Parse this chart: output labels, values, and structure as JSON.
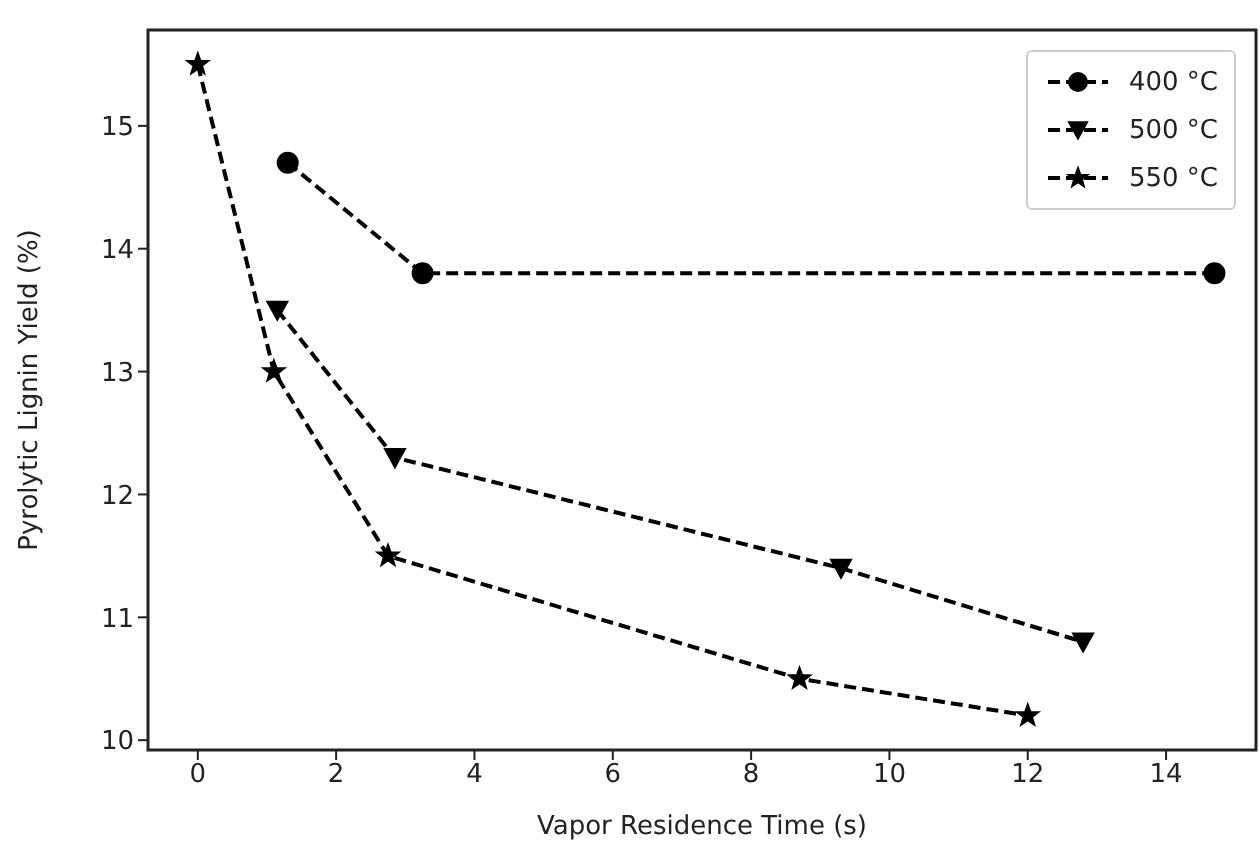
{
  "chart_data": {
    "type": "line",
    "xlabel": "Vapor Residence Time (s)",
    "ylabel": "Pyrolytic Lignin Yield (%)",
    "xlim": [
      -0.72,
      15.3
    ],
    "xticks": [
      0,
      2,
      4,
      6,
      8,
      10,
      12,
      14
    ],
    "ylim": [
      9.92,
      15.78
    ],
    "yticks": [
      10,
      11,
      12,
      13,
      14,
      15
    ],
    "grid": false,
    "legend": "top right",
    "line_style": "dashed",
    "series": [
      {
        "name": "400 °C",
        "color": "#000000",
        "marker": "circle",
        "x": [
          1.3,
          3.25,
          14.7
        ],
        "values": [
          14.7,
          13.8,
          13.8
        ]
      },
      {
        "name": "500 °C",
        "color": "#000000",
        "marker": "triangle",
        "x": [
          1.15,
          2.85,
          9.3,
          12.8
        ],
        "values": [
          13.5,
          12.3,
          11.4,
          10.8
        ]
      },
      {
        "name": "550 °C",
        "color": "#000000",
        "marker": "star",
        "x": [
          0,
          1.1,
          2.75,
          8.7,
          12.0
        ],
        "values": [
          15.5,
          13.0,
          11.5,
          10.5,
          10.2
        ]
      }
    ]
  }
}
